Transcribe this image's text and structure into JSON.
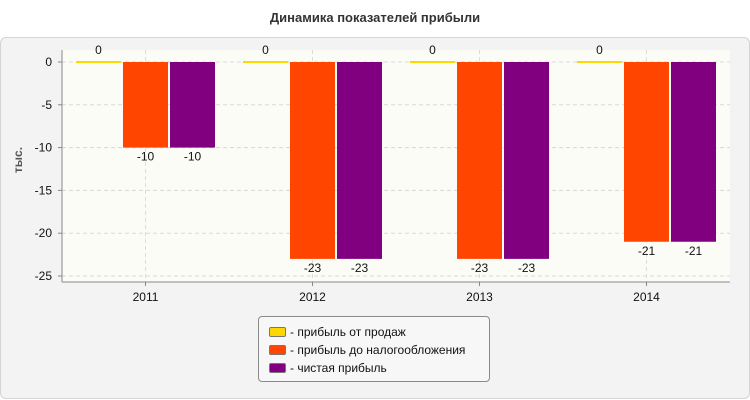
{
  "chart_data": {
    "type": "bar",
    "title": "Динамика показателей прибыли",
    "ylabel": "тыс.",
    "xlabel": "",
    "categories": [
      "2011",
      "2012",
      "2013",
      "2014"
    ],
    "ylim": [
      -25,
      0
    ],
    "yticks": [
      0,
      -5,
      -10,
      -15,
      -20,
      -25
    ],
    "grid": true,
    "legend_position": "bottom",
    "series": [
      {
        "name": "- прибыль от продаж",
        "color": "#ffd700",
        "values": [
          0,
          0,
          0,
          0
        ]
      },
      {
        "name": "- прибыль до налогообложения",
        "color": "#ff4500",
        "values": [
          -10,
          -23,
          -23,
          -21
        ]
      },
      {
        "name": "- чистая прибыль",
        "color": "#800080",
        "values": [
          -10,
          -23,
          -23,
          -21
        ]
      }
    ]
  }
}
